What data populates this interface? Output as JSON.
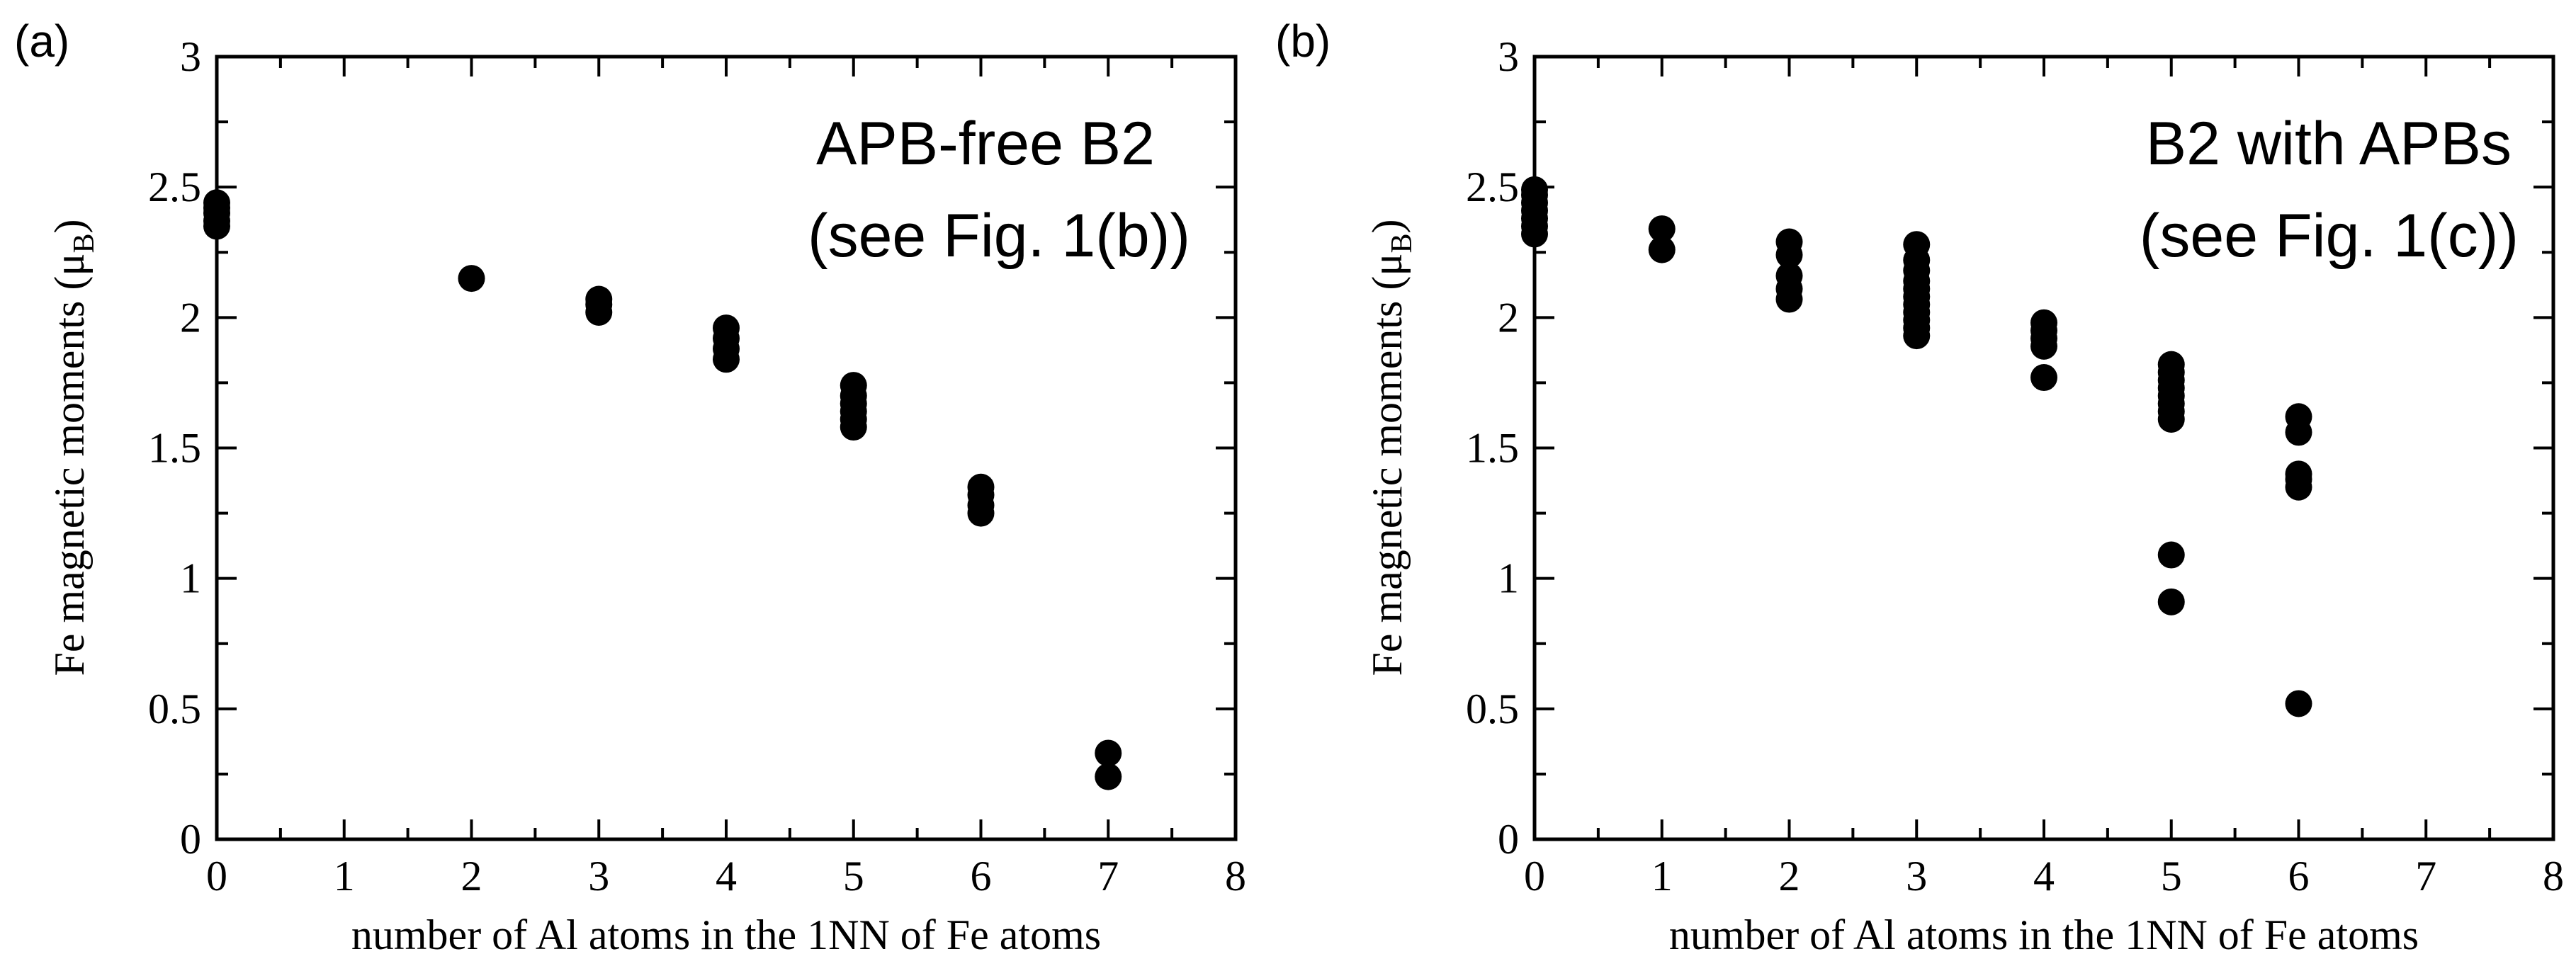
{
  "chart_data": [
    {
      "type": "scatter",
      "panel_label": "(a)",
      "xlabel": "number of Al atoms in the 1NN of Fe atoms",
      "ylabel_main": "Fe magnetic moments (μ",
      "ylabel_sub": "B",
      "ylabel_close": ")",
      "xlim": [
        0,
        8
      ],
      "ylim": [
        0,
        3
      ],
      "xticks": [
        "0",
        "1",
        "2",
        "3",
        "4",
        "5",
        "6",
        "7",
        "8"
      ],
      "yticks": [
        "0",
        "0.5",
        "1",
        "1.5",
        "2",
        "2.5",
        "3"
      ],
      "annotation": [
        "APB-free B2",
        "(see Fig. 1(b))"
      ],
      "grid": false,
      "points": [
        [
          0,
          2.35
        ],
        [
          0,
          2.37
        ],
        [
          0,
          2.4
        ],
        [
          0,
          2.42
        ],
        [
          0,
          2.44
        ],
        [
          2,
          2.15
        ],
        [
          3,
          2.02
        ],
        [
          3,
          2.05
        ],
        [
          3,
          2.07
        ],
        [
          4,
          1.84
        ],
        [
          4,
          1.88
        ],
        [
          4,
          1.92
        ],
        [
          4,
          1.96
        ],
        [
          5,
          1.58
        ],
        [
          5,
          1.61
        ],
        [
          5,
          1.64
        ],
        [
          5,
          1.67
        ],
        [
          5,
          1.7
        ],
        [
          5,
          1.74
        ],
        [
          6,
          1.25
        ],
        [
          6,
          1.28
        ],
        [
          6,
          1.32
        ],
        [
          6,
          1.35
        ],
        [
          7,
          0.24
        ],
        [
          7,
          0.33
        ]
      ]
    },
    {
      "type": "scatter",
      "panel_label": "(b)",
      "xlabel": "number of Al atoms in the 1NN of Fe atoms",
      "ylabel_main": "Fe magnetic moments (μ",
      "ylabel_sub": "B",
      "ylabel_close": ")",
      "xlim": [
        0,
        8
      ],
      "ylim": [
        0,
        3
      ],
      "xticks": [
        "0",
        "1",
        "2",
        "3",
        "4",
        "5",
        "6",
        "7",
        "8"
      ],
      "yticks": [
        "0",
        "0.5",
        "1",
        "1.5",
        "2",
        "2.5",
        "3"
      ],
      "annotation": [
        "B2 with APBs",
        "(see Fig. 1(c))"
      ],
      "grid": false,
      "points": [
        [
          0,
          2.32
        ],
        [
          0,
          2.35
        ],
        [
          0,
          2.38
        ],
        [
          0,
          2.41
        ],
        [
          0,
          2.44
        ],
        [
          0,
          2.47
        ],
        [
          0,
          2.49
        ],
        [
          1,
          2.26
        ],
        [
          1,
          2.34
        ],
        [
          2,
          2.07
        ],
        [
          2,
          2.11
        ],
        [
          2,
          2.16
        ],
        [
          2,
          2.24
        ],
        [
          2,
          2.29
        ],
        [
          3,
          1.93
        ],
        [
          3,
          1.96
        ],
        [
          3,
          1.99
        ],
        [
          3,
          2.02
        ],
        [
          3,
          2.05
        ],
        [
          3,
          2.08
        ],
        [
          3,
          2.11
        ],
        [
          3,
          2.14
        ],
        [
          3,
          2.18
        ],
        [
          3,
          2.22
        ],
        [
          3,
          2.28
        ],
        [
          4,
          1.77
        ],
        [
          4,
          1.89
        ],
        [
          4,
          1.92
        ],
        [
          4,
          1.95
        ],
        [
          4,
          1.98
        ],
        [
          5,
          0.91
        ],
        [
          5,
          1.09
        ],
        [
          5,
          1.61
        ],
        [
          5,
          1.64
        ],
        [
          5,
          1.67
        ],
        [
          5,
          1.7
        ],
        [
          5,
          1.73
        ],
        [
          5,
          1.76
        ],
        [
          5,
          1.79
        ],
        [
          5,
          1.82
        ],
        [
          6,
          0.52
        ],
        [
          6,
          1.35
        ],
        [
          6,
          1.38
        ],
        [
          6,
          1.4
        ],
        [
          6,
          1.56
        ],
        [
          6,
          1.62
        ]
      ]
    }
  ]
}
